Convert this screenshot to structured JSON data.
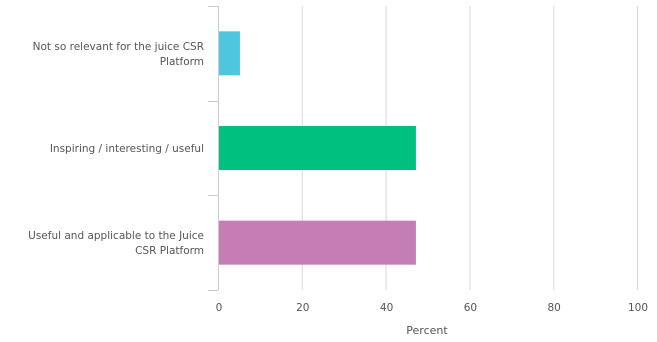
{
  "chart_data": {
    "type": "bar",
    "orientation": "horizontal",
    "categories": [
      [
        "Not so relevant for the juice CSR",
        "Platform"
      ],
      [
        "Inspiring / interesting / useful"
      ],
      [
        "Useful and applicable to the Juice",
        "CSR Platform"
      ]
    ],
    "values": [
      5,
      47,
      47
    ],
    "colors": [
      "#4dc6de",
      "#00c080",
      "#c57db6"
    ],
    "xlabel": "Percent",
    "xlim": [
      0,
      100
    ],
    "xticks": [
      "0",
      "20",
      "40",
      "60",
      "80",
      "100"
    ],
    "grid": true
  }
}
